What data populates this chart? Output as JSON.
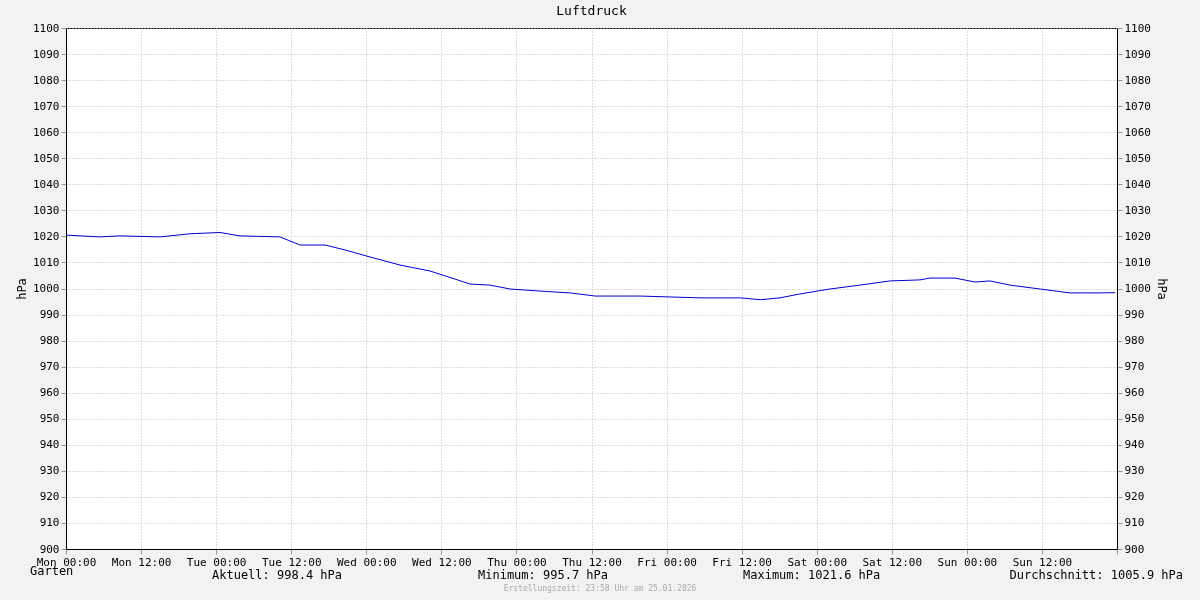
{
  "chart_data": {
    "type": "line",
    "title": "Luftdruck",
    "ylabel": "hPa",
    "y2label": "hPa",
    "x": [
      "2026-01-19T00:00",
      "2026-01-19T05:24",
      "2026-01-19T08:36",
      "2026-01-19T15:00",
      "2026-01-19T19:48",
      "2026-01-20T00:36",
      "2026-01-20T03:48",
      "2026-01-20T10:12",
      "2026-01-20T13:24",
      "2026-01-20T17:24",
      "2026-01-20T20:36",
      "2026-01-21T00:36",
      "2026-01-21T05:24",
      "2026-01-21T10:12",
      "2026-01-21T14:12",
      "2026-01-21T16:36",
      "2026-01-21T19:48",
      "2026-01-21T23:00",
      "2026-01-22T03:48",
      "2026-01-22T08:36",
      "2026-01-22T12:36",
      "2026-01-22T19:48",
      "2026-01-23T05:24",
      "2026-01-23T11:48",
      "2026-01-23T15:00",
      "2026-01-23T18:06",
      "2026-01-23T21:18",
      "2026-01-24T02:06",
      "2026-01-24T06:54",
      "2026-01-24T11:42",
      "2026-01-24T16:30",
      "2026-01-24T18:06",
      "2026-01-24T22:06",
      "2026-01-25T01:18",
      "2026-01-25T03:42",
      "2026-01-25T06:54",
      "2026-01-25T11:42",
      "2026-01-25T16:30",
      "2026-01-25T21:18",
      "2026-01-25T23:42"
    ],
    "series": [
      {
        "name": "Garten",
        "color": "#0000cc",
        "values": [
          1020.5,
          1019.8,
          1020.2,
          1019.8,
          1021.0,
          1021.5,
          1020.2,
          1019.8,
          1016.7,
          1016.7,
          1014.8,
          1012.1,
          1009.0,
          1006.7,
          1003.6,
          1001.7,
          1001.3,
          999.8,
          999.0,
          998.3,
          997.1,
          997.1,
          996.4,
          996.4,
          995.7,
          996.4,
          997.9,
          999.8,
          1001.3,
          1002.9,
          1003.3,
          1004.0,
          1004.0,
          1002.5,
          1002.9,
          1001.3,
          999.8,
          998.3,
          998.3,
          998.4
        ]
      }
    ],
    "xlim": [
      "2026-01-19T00:00",
      "2026-01-26T00:00"
    ],
    "xticks": [
      {
        "value": "2026-01-19T00:00",
        "label": "Mon 00:00"
      },
      {
        "value": "2026-01-19T12:00",
        "label": "Mon 12:00"
      },
      {
        "value": "2026-01-20T00:00",
        "label": "Tue 00:00"
      },
      {
        "value": "2026-01-20T12:00",
        "label": "Tue 12:00"
      },
      {
        "value": "2026-01-21T00:00",
        "label": "Wed 00:00"
      },
      {
        "value": "2026-01-21T12:00",
        "label": "Wed 12:00"
      },
      {
        "value": "2026-01-22T00:00",
        "label": "Thu 00:00"
      },
      {
        "value": "2026-01-22T12:00",
        "label": "Thu 12:00"
      },
      {
        "value": "2026-01-23T00:00",
        "label": "Fri 00:00"
      },
      {
        "value": "2026-01-23T12:00",
        "label": "Fri 12:00"
      },
      {
        "value": "2026-01-24T00:00",
        "label": "Sat 00:00"
      },
      {
        "value": "2026-01-24T12:00",
        "label": "Sat 12:00"
      },
      {
        "value": "2026-01-25T00:00",
        "label": "Sun 00:00"
      },
      {
        "value": "2026-01-25T12:00",
        "label": "Sun 12:00"
      },
      {
        "value": "2026-01-26T00:00",
        "label": null
      }
    ],
    "ylim": [
      900,
      1100
    ],
    "yticks": [
      900,
      910,
      920,
      930,
      940,
      950,
      960,
      970,
      980,
      990,
      1000,
      1010,
      1020,
      1030,
      1040,
      1050,
      1060,
      1070,
      1080,
      1090,
      1100
    ],
    "y2lim": [
      900,
      1100
    ],
    "y2ticks": [
      900,
      910,
      920,
      930,
      940,
      950,
      960,
      970,
      980,
      990,
      1000,
      1010,
      1020,
      1030,
      1040,
      1050,
      1060,
      1070,
      1080,
      1090,
      1100
    ],
    "grid": true,
    "legend": "bottom left",
    "marker": "none",
    "line_style": "solid",
    "annotations": [
      "Aktuell: 998.4 hPa",
      "Minimum: 995.7 hPa",
      "Maximum: 1021.6 hPa",
      "Durchschnitt: 1005.9 hPa",
      "Erstellungszeit: 23:58 Uhr am 25.01.2026"
    ]
  }
}
